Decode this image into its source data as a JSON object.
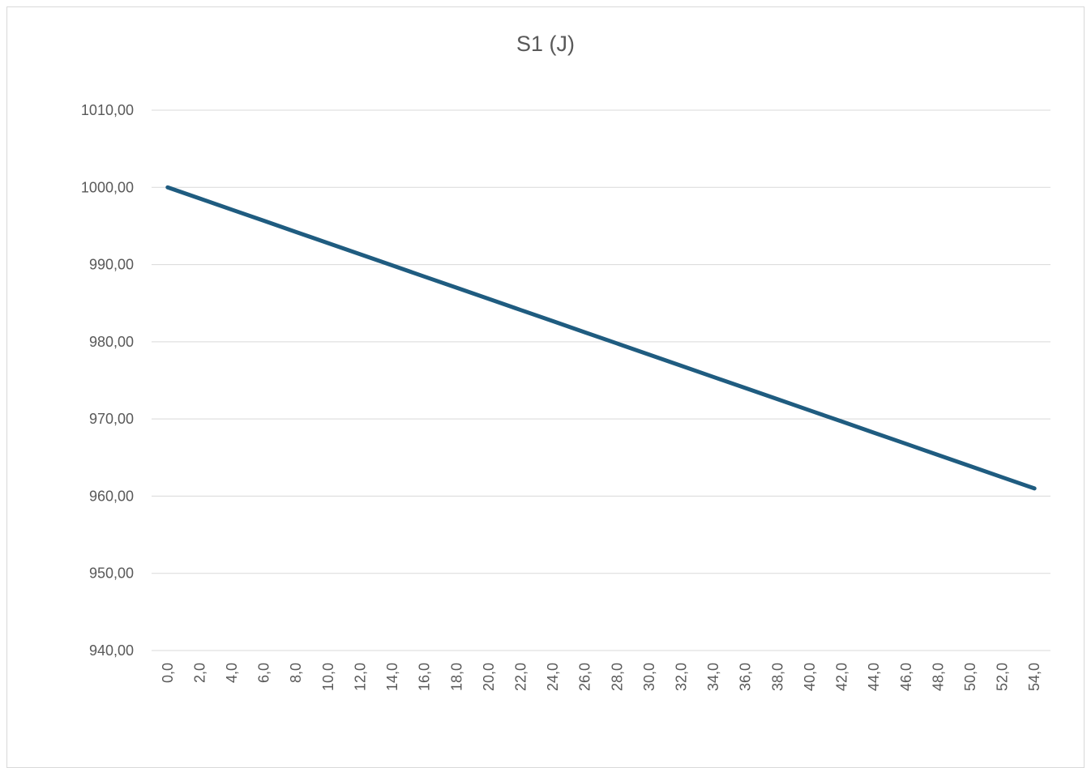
{
  "chart_data": {
    "type": "line",
    "title": "S1 (J)",
    "xlabel": "",
    "ylabel": "",
    "x": [
      "0,0",
      "2,0",
      "4,0",
      "6,0",
      "8,0",
      "10,0",
      "12,0",
      "14,0",
      "16,0",
      "18,0",
      "20,0",
      "22,0",
      "24,0",
      "26,0",
      "28,0",
      "30,0",
      "32,0",
      "34,0",
      "36,0",
      "38,0",
      "40,0",
      "42,0",
      "44,0",
      "46,0",
      "48,0",
      "50,0",
      "52,0",
      "54,0"
    ],
    "series": [
      {
        "values": [
          1000.0,
          998.56,
          997.11,
          995.67,
          994.22,
          992.78,
          991.33,
          989.89,
          988.44,
          987.0,
          985.56,
          984.11,
          982.67,
          981.22,
          979.78,
          978.33,
          976.89,
          975.44,
          974.0,
          972.56,
          971.11,
          969.67,
          968.22,
          966.78,
          965.33,
          963.89,
          962.44,
          961.0
        ],
        "color": "#1f5c80"
      }
    ],
    "ylim": [
      940,
      1010
    ],
    "yticks": [
      "940,00",
      "950,00",
      "960,00",
      "970,00",
      "980,00",
      "990,00",
      "1000,00",
      "1010,00"
    ],
    "grid": true,
    "legend": "none",
    "colors": {
      "gridline": "#d9d9d9",
      "text": "#595959"
    }
  }
}
